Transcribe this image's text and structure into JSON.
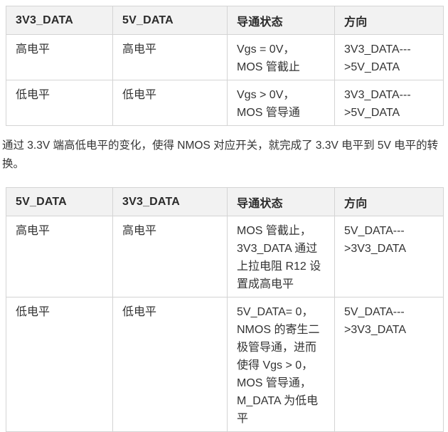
{
  "colors": {
    "page_background": "#ffffff",
    "header_background": "#f2f2f2",
    "border": "#d4d4d4",
    "text": "#333333"
  },
  "table1": {
    "headers": [
      "3V3_DATA",
      "5V_DATA",
      "导通状态",
      "方向"
    ],
    "rows": [
      {
        "cells": [
          "高电平",
          "高电平",
          "Vgs = 0V，\nMOS 管截止",
          "3V3_DATA---\n>5V_DATA"
        ]
      },
      {
        "cells": [
          "低电平",
          "低电平",
          "Vgs > 0V，\nMOS 管导通",
          "3V3_DATA---\n>5V_DATA"
        ]
      }
    ]
  },
  "paragraph": {
    "text": "通过 3.3V 端高低电平的变化，使得 NMOS 对应开关，就完成了 3.3V 电平到 5V 电平的转换。"
  },
  "table2": {
    "headers": [
      "5V_DATA",
      "3V3_DATA",
      "导通状态",
      "方向"
    ],
    "rows": [
      {
        "cells": [
          "高电平",
          "高电平",
          "MOS 管截止，\n3V3_DATA 通过\n上拉电阻 R12 设\n置成高电平",
          "5V_DATA---\n>3V3_DATA"
        ]
      },
      {
        "cells": [
          "低电平",
          "低电平",
          "5V_DATA= 0，\nNMOS 的寄生二\n极管导通，进而\n使得 Vgs > 0，\nMOS 管导通，\nM_DATA 为低电\n平",
          "5V_DATA---\n>3V3_DATA"
        ]
      }
    ]
  }
}
